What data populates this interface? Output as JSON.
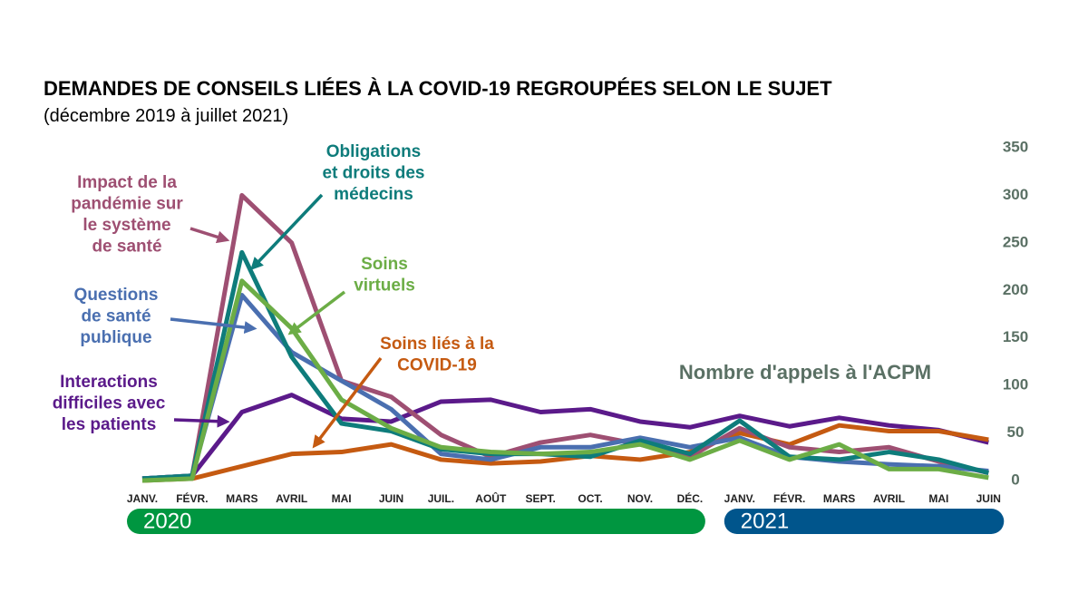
{
  "chart_data": {
    "type": "line",
    "title": "DEMANDES DE CONSEILS LIÉES À LA COVID-19 REGROUPÉES SELON LE SUJET",
    "subtitle": "(décembre 2019 à juillet 2021)",
    "y_label": "Nombre d'appels à l'ACPM",
    "categories": [
      "JANV.",
      "FÉVR.",
      "MARS",
      "AVRIL",
      "MAI",
      "JUIN",
      "JUIL.",
      "AOÛT",
      "SEPT.",
      "OCT.",
      "NOV.",
      "DÉC.",
      "JANV.",
      "FÉVR.",
      "MARS",
      "AVRIL",
      "MAI",
      "JUIN"
    ],
    "periods": [
      {
        "label": "2020",
        "color": "#009640",
        "start": 0,
        "end": 11
      },
      {
        "label": "2021",
        "color": "#00558c",
        "start": 12,
        "end": 17
      }
    ],
    "ylim": [
      0,
      350
    ],
    "yticks": [
      0,
      50,
      100,
      150,
      200,
      250,
      300,
      350
    ],
    "series": [
      {
        "name": "Interactions\ndifficiles avec\nles patients",
        "color": "#5b1a8a",
        "values": [
          2,
          5,
          72,
          90,
          65,
          62,
          83,
          85,
          72,
          75,
          62,
          56,
          68,
          57,
          66,
          58,
          53,
          40
        ]
      },
      {
        "name": "Soins liés à la\nCOVID-19",
        "color": "#c55a11",
        "values": [
          0,
          2,
          15,
          28,
          30,
          38,
          22,
          18,
          20,
          26,
          22,
          30,
          50,
          38,
          58,
          52,
          52,
          43
        ]
      },
      {
        "name": "Impact de la\npandémie sur\nle système\nde santé",
        "color": "#9e4f72",
        "values": [
          2,
          5,
          300,
          250,
          105,
          88,
          48,
          25,
          40,
          48,
          38,
          25,
          55,
          35,
          30,
          35,
          20,
          8
        ]
      },
      {
        "name": "Questions\nde santé\npublique",
        "color": "#4a6fb0",
        "values": [
          2,
          5,
          195,
          135,
          105,
          75,
          28,
          22,
          35,
          35,
          45,
          35,
          45,
          25,
          20,
          17,
          15,
          10
        ]
      },
      {
        "name": "Obligations\net droits des\nmédecins",
        "color": "#0e7c7b",
        "values": [
          2,
          5,
          240,
          130,
          60,
          52,
          33,
          28,
          28,
          25,
          42,
          28,
          63,
          25,
          22,
          30,
          22,
          8
        ]
      },
      {
        "name": "Soins\nvirtuels",
        "color": "#6cad46",
        "values": [
          0,
          2,
          210,
          160,
          85,
          55,
          35,
          30,
          28,
          30,
          38,
          22,
          42,
          22,
          38,
          12,
          12,
          3
        ]
      }
    ]
  }
}
